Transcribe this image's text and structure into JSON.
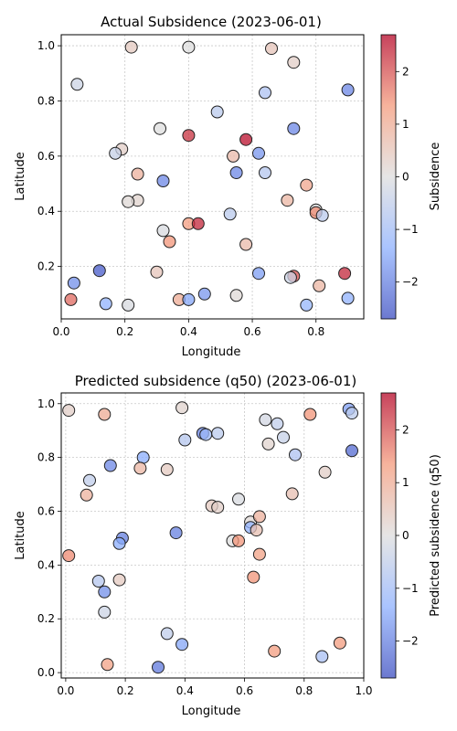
{
  "chart_data": [
    {
      "type": "scatter",
      "title": "Actual Subsidence (2023-06-01)",
      "xlabel": "Longitude",
      "ylabel": "Latitude",
      "colorbar_label": "Subsidence",
      "xlim": [
        0.0,
        0.95
      ],
      "ylim": [
        0.01,
        1.04
      ],
      "xticks": [
        0.0,
        0.2,
        0.4,
        0.6,
        0.8
      ],
      "xtick_labels": [
        "0.0",
        "0.2",
        "0.4",
        "0.6",
        "0.8"
      ],
      "yticks": [
        0.2,
        0.4,
        0.6,
        0.8,
        1.0
      ],
      "ytick_labels": [
        "0.2",
        "0.4",
        "0.6",
        "0.8",
        "1.0"
      ],
      "cbar_range": [
        -2.7,
        2.7
      ],
      "cbar_ticks": [
        -2,
        -1,
        0,
        1,
        2
      ],
      "cbar_tick_labels": [
        "−2",
        "−1",
        "0",
        "1",
        "2"
      ],
      "grid": true,
      "colormap": "coolwarm",
      "points": [
        {
          "x": 0.22,
          "y": 0.995,
          "v": 0.4
        },
        {
          "x": 0.4,
          "y": 0.995,
          "v": 0.0
        },
        {
          "x": 0.66,
          "y": 0.99,
          "v": 0.5
        },
        {
          "x": 0.73,
          "y": 0.94,
          "v": 0.3
        },
        {
          "x": 0.05,
          "y": 0.86,
          "v": -0.3
        },
        {
          "x": 0.9,
          "y": 0.84,
          "v": -1.9
        },
        {
          "x": 0.64,
          "y": 0.83,
          "v": -0.8
        },
        {
          "x": 0.49,
          "y": 0.76,
          "v": -0.6
        },
        {
          "x": 0.31,
          "y": 0.7,
          "v": 0.0
        },
        {
          "x": 0.73,
          "y": 0.7,
          "v": -1.9
        },
        {
          "x": 0.4,
          "y": 0.675,
          "v": 2.3
        },
        {
          "x": 0.58,
          "y": 0.66,
          "v": 2.6
        },
        {
          "x": 0.19,
          "y": 0.625,
          "v": 0.3
        },
        {
          "x": 0.17,
          "y": 0.61,
          "v": -0.4
        },
        {
          "x": 0.62,
          "y": 0.61,
          "v": -1.7
        },
        {
          "x": 0.54,
          "y": 0.6,
          "v": 0.7
        },
        {
          "x": 0.55,
          "y": 0.54,
          "v": -1.9
        },
        {
          "x": 0.64,
          "y": 0.54,
          "v": -0.7
        },
        {
          "x": 0.24,
          "y": 0.535,
          "v": 0.9
        },
        {
          "x": 0.32,
          "y": 0.51,
          "v": -1.9
        },
        {
          "x": 0.77,
          "y": 0.495,
          "v": 1.1
        },
        {
          "x": 0.24,
          "y": 0.44,
          "v": 0.2
        },
        {
          "x": 0.21,
          "y": 0.435,
          "v": 0.1
        },
        {
          "x": 0.71,
          "y": 0.44,
          "v": 0.8
        },
        {
          "x": 0.8,
          "y": 0.405,
          "v": 0.0
        },
        {
          "x": 0.8,
          "y": 0.395,
          "v": 1.5
        },
        {
          "x": 0.82,
          "y": 0.385,
          "v": -0.6
        },
        {
          "x": 0.53,
          "y": 0.39,
          "v": -0.6
        },
        {
          "x": 0.4,
          "y": 0.355,
          "v": 1.3
        },
        {
          "x": 0.43,
          "y": 0.355,
          "v": 2.4
        },
        {
          "x": 0.32,
          "y": 0.33,
          "v": -0.1
        },
        {
          "x": 0.34,
          "y": 0.29,
          "v": 1.4
        },
        {
          "x": 0.58,
          "y": 0.28,
          "v": 0.7
        },
        {
          "x": 0.3,
          "y": 0.18,
          "v": 0.5
        },
        {
          "x": 0.12,
          "y": 0.185,
          "v": -2.5
        },
        {
          "x": 0.62,
          "y": 0.175,
          "v": -1.6
        },
        {
          "x": 0.73,
          "y": 0.165,
          "v": 2.0
        },
        {
          "x": 0.72,
          "y": 0.16,
          "v": -0.3
        },
        {
          "x": 0.89,
          "y": 0.175,
          "v": 2.4
        },
        {
          "x": 0.04,
          "y": 0.14,
          "v": -1.8
        },
        {
          "x": 0.81,
          "y": 0.13,
          "v": 0.8
        },
        {
          "x": 0.45,
          "y": 0.1,
          "v": -1.7
        },
        {
          "x": 0.55,
          "y": 0.095,
          "v": 0.1
        },
        {
          "x": 0.03,
          "y": 0.08,
          "v": 1.8
        },
        {
          "x": 0.37,
          "y": 0.08,
          "v": 1.0
        },
        {
          "x": 0.4,
          "y": 0.08,
          "v": -1.5
        },
        {
          "x": 0.14,
          "y": 0.065,
          "v": -1.3
        },
        {
          "x": 0.21,
          "y": 0.06,
          "v": -0.1
        },
        {
          "x": 0.77,
          "y": 0.06,
          "v": -1.2
        },
        {
          "x": 0.9,
          "y": 0.085,
          "v": -1.3
        }
      ]
    },
    {
      "type": "scatter",
      "title": "Predicted subsidence (q50) (2023-06-01)",
      "xlabel": "Longitude",
      "ylabel": "Latitude",
      "colorbar_label": "Predicted subsidence (q50)",
      "xlim": [
        -0.015,
        1.0
      ],
      "ylim": [
        -0.02,
        1.04
      ],
      "xticks": [
        0.0,
        0.2,
        0.4,
        0.6,
        0.8,
        1.0
      ],
      "xtick_labels": [
        "0.0",
        "0.2",
        "0.4",
        "0.6",
        "0.8",
        "1.0"
      ],
      "yticks": [
        0.0,
        0.2,
        0.4,
        0.6,
        0.8,
        1.0
      ],
      "ytick_labels": [
        "0.0",
        "0.2",
        "0.4",
        "0.6",
        "0.8",
        "1.0"
      ],
      "cbar_range": [
        -2.7,
        2.7
      ],
      "cbar_ticks": [
        -2,
        -1,
        0,
        1,
        2
      ],
      "cbar_tick_labels": [
        "−2",
        "−1",
        "0",
        "1",
        "2"
      ],
      "grid": true,
      "colormap": "coolwarm",
      "points": [
        {
          "x": 0.01,
          "y": 0.975,
          "v": 0.3
        },
        {
          "x": 0.13,
          "y": 0.96,
          "v": 1.0
        },
        {
          "x": 0.39,
          "y": 0.985,
          "v": 0.2
        },
        {
          "x": 0.67,
          "y": 0.94,
          "v": -0.2
        },
        {
          "x": 0.71,
          "y": 0.925,
          "v": -0.5
        },
        {
          "x": 0.82,
          "y": 0.96,
          "v": 1.4
        },
        {
          "x": 0.95,
          "y": 0.98,
          "v": -1.6
        },
        {
          "x": 0.96,
          "y": 0.965,
          "v": -0.6
        },
        {
          "x": 0.4,
          "y": 0.865,
          "v": -0.7
        },
        {
          "x": 0.46,
          "y": 0.89,
          "v": -2.0
        },
        {
          "x": 0.47,
          "y": 0.885,
          "v": -1.1
        },
        {
          "x": 0.51,
          "y": 0.89,
          "v": -0.6
        },
        {
          "x": 0.73,
          "y": 0.875,
          "v": -0.4
        },
        {
          "x": 0.68,
          "y": 0.85,
          "v": 0.2
        },
        {
          "x": 0.96,
          "y": 0.825,
          "v": -2.3
        },
        {
          "x": 0.77,
          "y": 0.81,
          "v": -0.8
        },
        {
          "x": 0.26,
          "y": 0.8,
          "v": -1.4
        },
        {
          "x": 0.15,
          "y": 0.77,
          "v": -1.9
        },
        {
          "x": 0.25,
          "y": 0.76,
          "v": 0.8
        },
        {
          "x": 0.34,
          "y": 0.755,
          "v": 0.4
        },
        {
          "x": 0.87,
          "y": 0.745,
          "v": 0.3
        },
        {
          "x": 0.08,
          "y": 0.715,
          "v": -0.5
        },
        {
          "x": 0.07,
          "y": 0.66,
          "v": 0.9
        },
        {
          "x": 0.76,
          "y": 0.665,
          "v": 0.6
        },
        {
          "x": 0.58,
          "y": 0.645,
          "v": -0.1
        },
        {
          "x": 0.49,
          "y": 0.62,
          "v": 0.4
        },
        {
          "x": 0.51,
          "y": 0.615,
          "v": 0.3
        },
        {
          "x": 0.62,
          "y": 0.56,
          "v": 0.1
        },
        {
          "x": 0.65,
          "y": 0.58,
          "v": 0.9
        },
        {
          "x": 0.62,
          "y": 0.54,
          "v": -1.3
        },
        {
          "x": 0.64,
          "y": 0.53,
          "v": 0.6
        },
        {
          "x": 0.37,
          "y": 0.52,
          "v": -2.0
        },
        {
          "x": 0.19,
          "y": 0.5,
          "v": -2.0
        },
        {
          "x": 0.18,
          "y": 0.48,
          "v": -1.4
        },
        {
          "x": 0.56,
          "y": 0.49,
          "v": 0.0
        },
        {
          "x": 0.58,
          "y": 0.49,
          "v": 1.4
        },
        {
          "x": 0.65,
          "y": 0.44,
          "v": 1.2
        },
        {
          "x": 0.01,
          "y": 0.435,
          "v": 1.5
        },
        {
          "x": 0.11,
          "y": 0.34,
          "v": -0.7
        },
        {
          "x": 0.18,
          "y": 0.345,
          "v": 0.4
        },
        {
          "x": 0.63,
          "y": 0.355,
          "v": 1.4
        },
        {
          "x": 0.13,
          "y": 0.3,
          "v": -1.8
        },
        {
          "x": 0.13,
          "y": 0.225,
          "v": -0.3
        },
        {
          "x": 0.34,
          "y": 0.145,
          "v": -0.5
        },
        {
          "x": 0.39,
          "y": 0.105,
          "v": -1.5
        },
        {
          "x": 0.92,
          "y": 0.11,
          "v": 1.3
        },
        {
          "x": 0.7,
          "y": 0.08,
          "v": 1.3
        },
        {
          "x": 0.14,
          "y": 0.03,
          "v": 1.2
        },
        {
          "x": 0.31,
          "y": 0.02,
          "v": -2.1
        },
        {
          "x": 0.86,
          "y": 0.06,
          "v": -0.9
        }
      ]
    }
  ]
}
